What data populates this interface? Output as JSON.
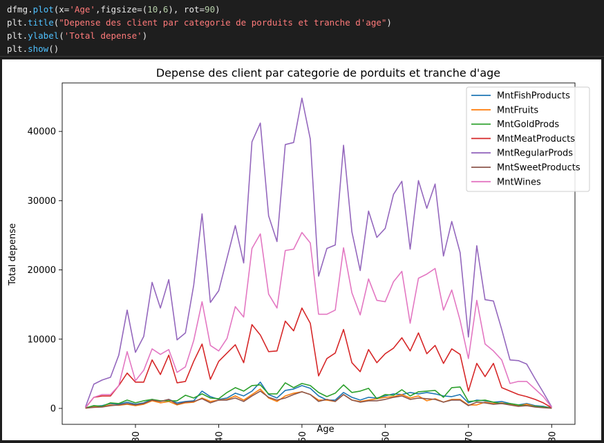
{
  "code": {
    "lines": [
      [
        {
          "t": "dfmg.",
          "c": "obj"
        },
        {
          "t": "plot",
          "c": "fn"
        },
        {
          "t": "(x=",
          "c": "obj"
        },
        {
          "t": "'Age'",
          "c": "str"
        },
        {
          "t": ",figsize=(",
          "c": "obj"
        },
        {
          "t": "10",
          "c": "num"
        },
        {
          "t": ",",
          "c": "obj"
        },
        {
          "t": "6",
          "c": "num"
        },
        {
          "t": "), rot=",
          "c": "obj"
        },
        {
          "t": "90",
          "c": "num"
        },
        {
          "t": ")",
          "c": "obj"
        }
      ],
      [
        {
          "t": "plt.",
          "c": "obj"
        },
        {
          "t": "title",
          "c": "fn"
        },
        {
          "t": "(",
          "c": "obj"
        },
        {
          "t": "\"Depense des client par categorie de porduits et tranche d'age\"",
          "c": "str"
        },
        {
          "t": ")",
          "c": "obj"
        }
      ],
      [
        {
          "t": "plt.",
          "c": "obj"
        },
        {
          "t": "ylabel",
          "c": "fn"
        },
        {
          "t": "(",
          "c": "obj"
        },
        {
          "t": "'Total depense'",
          "c": "str"
        },
        {
          "t": ")",
          "c": "obj"
        }
      ],
      [
        {
          "t": "plt.",
          "c": "obj"
        },
        {
          "t": "show",
          "c": "fn"
        },
        {
          "t": "()",
          "c": "obj"
        }
      ]
    ]
  },
  "chart_data": {
    "type": "line",
    "title": "Depense des client par categorie de porduits et tranche d'age",
    "xlabel": "Age",
    "ylabel": "Total depense",
    "xlim": [
      21.2,
      82.8
    ],
    "ylim": [
      -2300,
      47000
    ],
    "xticks": [
      30,
      40,
      50,
      60,
      70,
      80
    ],
    "yticks": [
      0,
      10000,
      20000,
      30000,
      40000
    ],
    "xtick_rotation": 90,
    "legend_position": "top-right",
    "x": [
      24,
      25,
      26,
      27,
      28,
      29,
      30,
      31,
      32,
      33,
      34,
      35,
      36,
      37,
      38,
      39,
      40,
      41,
      42,
      43,
      44,
      45,
      46,
      47,
      48,
      49,
      50,
      51,
      52,
      53,
      54,
      55,
      56,
      57,
      58,
      59,
      60,
      61,
      62,
      63,
      64,
      65,
      66,
      67,
      68,
      69,
      70,
      71,
      72,
      73,
      74,
      75,
      76,
      77,
      78,
      79,
      80
    ],
    "series": [
      {
        "name": "MntFishProducts",
        "color": "#1f77b4",
        "values": [
          50,
          300,
          400,
          700,
          600,
          900,
          600,
          800,
          1300,
          1000,
          1300,
          800,
          1000,
          1100,
          2500,
          1700,
          1300,
          1500,
          2200,
          1800,
          2500,
          3800,
          2000,
          1500,
          2600,
          2800,
          3300,
          2900,
          1800,
          1200,
          1200,
          2300,
          1600,
          1200,
          1600,
          1500,
          1800,
          2100,
          2000,
          2300,
          2100,
          2300,
          2100,
          1800,
          1700,
          2000,
          800,
          1200,
          1100,
          900,
          1000,
          700,
          500,
          700,
          400,
          300,
          50
        ]
      },
      {
        "name": "MntFruits",
        "color": "#ff7f0e",
        "values": [
          30,
          200,
          250,
          500,
          450,
          600,
          400,
          600,
          1100,
          800,
          1000,
          500,
          800,
          900,
          1500,
          1000,
          1200,
          1300,
          1800,
          1200,
          2000,
          2800,
          1500,
          1000,
          1800,
          2200,
          2400,
          2000,
          1200,
          1200,
          1000,
          2000,
          1200,
          1000,
          1200,
          1400,
          1600,
          1700,
          2000,
          1500,
          1800,
          1100,
          1400,
          900,
          1300,
          1300,
          500,
          500,
          900,
          700,
          800,
          600,
          400,
          600,
          300,
          200,
          30
        ]
      },
      {
        "name": "MntGoldProds",
        "color": "#2ca02c",
        "values": [
          80,
          400,
          300,
          800,
          700,
          1200,
          800,
          1100,
          1300,
          1100,
          1100,
          1100,
          1900,
          1500,
          2100,
          1500,
          1400,
          2300,
          3000,
          2500,
          3300,
          3400,
          2100,
          2100,
          3700,
          3000,
          3600,
          3300,
          2300,
          1700,
          2200,
          3400,
          2300,
          2500,
          2900,
          1400,
          2000,
          1900,
          2700,
          1800,
          2400,
          2500,
          2600,
          1600,
          3000,
          3100,
          1000,
          1100,
          1200,
          900,
          700,
          700,
          500,
          400,
          300,
          200,
          100
        ]
      },
      {
        "name": "MntMeatProducts",
        "color": "#d62728",
        "values": [
          100,
          1600,
          1800,
          1800,
          3300,
          5100,
          3800,
          3800,
          7000,
          4900,
          7700,
          3700,
          3900,
          6800,
          9300,
          4200,
          6800,
          8000,
          9200,
          6600,
          12100,
          10600,
          8200,
          8300,
          12600,
          11200,
          14500,
          12300,
          4700,
          7200,
          8000,
          11400,
          6600,
          5300,
          8500,
          6600,
          7900,
          8700,
          10200,
          8300,
          10900,
          7900,
          9100,
          6500,
          8600,
          7800,
          2500,
          6500,
          4600,
          6500,
          3000,
          2500,
          2000,
          1700,
          1300,
          800,
          100
        ]
      },
      {
        "name": "MntRegularProds",
        "color": "#9467bd",
        "values": [
          200,
          3500,
          4100,
          4500,
          7700,
          14200,
          8100,
          10400,
          18200,
          14500,
          18600,
          9900,
          10900,
          17800,
          28100,
          15300,
          17000,
          21700,
          26400,
          21000,
          38500,
          41200,
          27800,
          24100,
          38100,
          38400,
          44800,
          38900,
          19100,
          23100,
          23600,
          38000,
          25500,
          19900,
          28500,
          24700,
          26000,
          30900,
          32800,
          23000,
          32900,
          28900,
          32400,
          22000,
          27000,
          22500,
          10300,
          23500,
          15700,
          15500,
          11400,
          7000,
          6900,
          6400,
          4300,
          2300,
          200
        ]
      },
      {
        "name": "MntSweetProducts",
        "color": "#8c564b",
        "values": [
          50,
          150,
          200,
          400,
          500,
          700,
          500,
          700,
          1200,
          1000,
          1300,
          600,
          900,
          1000,
          1400,
          800,
          1200,
          1200,
          1500,
          1000,
          1800,
          2500,
          1600,
          1200,
          1500,
          2000,
          2400,
          2000,
          1000,
          1300,
          1000,
          2000,
          1200,
          900,
          1100,
          1100,
          1300,
          1600,
          1800,
          1300,
          1500,
          1400,
          1300,
          900,
          1200,
          1200,
          400,
          900,
          800,
          600,
          700,
          500,
          300,
          400,
          200,
          100,
          30
        ]
      },
      {
        "name": "MntWines",
        "color": "#e377c2",
        "values": [
          150,
          1600,
          2000,
          2000,
          3300,
          8200,
          4000,
          5500,
          8600,
          7800,
          8500,
          5200,
          6000,
          9800,
          15400,
          9100,
          8300,
          10100,
          14700,
          13200,
          23100,
          25200,
          16500,
          14500,
          22800,
          23000,
          25400,
          23900,
          13600,
          13600,
          14200,
          23200,
          16700,
          13500,
          18700,
          15600,
          15400,
          18300,
          19800,
          12300,
          18800,
          19400,
          20200,
          14200,
          17100,
          12700,
          7200,
          15600,
          9300,
          8300,
          7000,
          3600,
          3900,
          3900,
          2800,
          1700,
          150
        ]
      }
    ]
  }
}
